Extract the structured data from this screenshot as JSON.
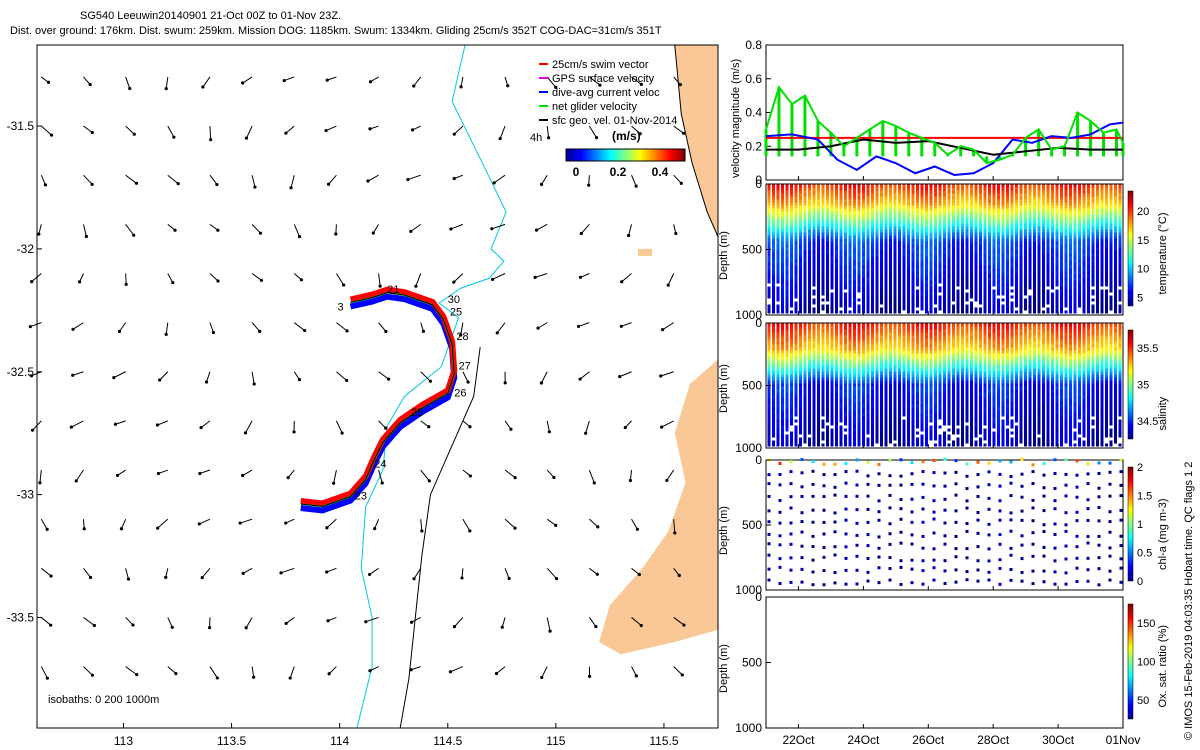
{
  "header": {
    "line1": "SG540 Leeuwin20140901 21-Oct 00Z to 01-Nov 23Z.",
    "line2": "Dist. over ground: 176km. Dist. swum: 259km. Mission DOG: 1185km. Swum: 1334km. Gliding 25cm/s 352T COG-DAC=31cm/s 351T"
  },
  "footer_note": "© IMOS 15-Feb-2019 04:03:35 Hobart time. QC flags 1  2",
  "colors": {
    "land": "#F9C896",
    "isobath_200": "#00C8E6",
    "isobath_1000": "#000000",
    "swim": "#FF0000",
    "gps": "#E000E0",
    "dac": "#0000FF",
    "net": "#00E000",
    "geo": "#000000"
  },
  "map": {
    "lon_ticks": [
      "113",
      "113.5",
      "114",
      "114.5",
      "115",
      "115.5"
    ],
    "lat_ticks": [
      "-31.5",
      "-32",
      "-32.5",
      "-33",
      "-33.5"
    ],
    "lon_range": [
      112.6,
      115.75
    ],
    "lat_range": [
      -33.95,
      -31.17
    ],
    "legend": [
      {
        "label": "25cm/s swim vector",
        "color": "#FF0000"
      },
      {
        "label": "GPS surface velocity",
        "color": "#E000E0"
      },
      {
        "label": "dive-avg current veloc",
        "color": "#0000FF"
      },
      {
        "label": "net glider velocity",
        "color": "#00E000"
      },
      {
        "label": "sfc geo. vel. 01-Nov-2014",
        "color": "#000000"
      }
    ],
    "colorbar_title": "(m/s)",
    "colorbar_ticks": [
      "0",
      "0.2",
      "0.4"
    ],
    "time_label": "4h",
    "isobaths_label": "isobaths: 0   200  1000m",
    "day_labels": [
      {
        "text": "21",
        "lon": 114.22,
        "lat": -32.18
      },
      {
        "text": "30",
        "lon": 114.5,
        "lat": -32.22
      },
      {
        "text": "3",
        "lon": 113.99,
        "lat": -32.25
      },
      {
        "text": "25",
        "lon": 114.51,
        "lat": -32.27
      },
      {
        "text": "28",
        "lon": 114.54,
        "lat": -32.37
      },
      {
        "text": "27",
        "lon": 114.55,
        "lat": -32.49
      },
      {
        "text": "26",
        "lon": 114.53,
        "lat": -32.6
      },
      {
        "text": "25",
        "lon": 114.33,
        "lat": -32.68
      },
      {
        "text": "24",
        "lon": 114.16,
        "lat": -32.89
      },
      {
        "text": "23",
        "lon": 114.07,
        "lat": -33.02
      }
    ]
  },
  "chart_data": [
    {
      "type": "line",
      "ylabel": "velocity magnitude (m/s)",
      "ylim": [
        0,
        0.8
      ],
      "yticks": [
        "0",
        "0.2",
        "0.4",
        "0.6",
        "0.8"
      ],
      "x_dates": [
        "22Oct",
        "24Oct",
        "26Oct",
        "28Oct",
        "30Oct",
        "01Nov"
      ],
      "series": [
        {
          "color": "#FF0000",
          "x": [
            21.0,
            32.0
          ],
          "y": [
            0.25,
            0.25
          ]
        },
        {
          "color": "#0000FF",
          "x": [
            21.0,
            21.8,
            22.6,
            23.2,
            23.8,
            24.4,
            25.0,
            25.6,
            26.2,
            26.8,
            27.4,
            28.0,
            28.6,
            29.2,
            29.8,
            30.4,
            31.0,
            31.6,
            32.0
          ],
          "y": [
            0.26,
            0.27,
            0.24,
            0.12,
            0.06,
            0.14,
            0.1,
            0.04,
            0.08,
            0.03,
            0.04,
            0.1,
            0.24,
            0.22,
            0.26,
            0.25,
            0.27,
            0.33,
            0.34
          ]
        },
        {
          "color": "#000000",
          "x": [
            21.0,
            22.0,
            23.0,
            24.0,
            25.0,
            26.0,
            27.0,
            28.0,
            29.0,
            30.0,
            31.0,
            32.0
          ],
          "y": [
            0.18,
            0.18,
            0.2,
            0.24,
            0.22,
            0.23,
            0.19,
            0.15,
            0.17,
            0.19,
            0.18,
            0.18
          ]
        },
        {
          "color": "#00E000",
          "x": [
            21.0,
            21.4,
            21.8,
            22.2,
            22.6,
            23.0,
            23.4,
            23.8,
            24.2,
            24.6,
            25.0,
            25.4,
            25.8,
            26.2,
            26.6,
            27.0,
            27.4,
            27.8,
            28.2,
            28.6,
            29.0,
            29.4,
            29.8,
            30.2,
            30.6,
            31.0,
            31.4,
            31.8,
            32.0
          ],
          "y": [
            0.3,
            0.55,
            0.45,
            0.5,
            0.35,
            0.28,
            0.2,
            0.25,
            0.3,
            0.35,
            0.32,
            0.28,
            0.25,
            0.22,
            0.15,
            0.2,
            0.18,
            0.1,
            0.12,
            0.15,
            0.25,
            0.3,
            0.18,
            0.2,
            0.4,
            0.35,
            0.28,
            0.3,
            0.22
          ]
        }
      ]
    },
    {
      "type": "heatmap",
      "variable": "temperature",
      "ylabel": "Depth (m)",
      "yticks": [
        "0",
        "500",
        "1000"
      ],
      "clabel": "temperature (°C)",
      "cticks": [
        "5",
        "10",
        "15",
        "20"
      ],
      "x_dates": [
        "22Oct",
        "24Oct",
        "26Oct",
        "28Oct",
        "30Oct",
        "01Nov"
      ]
    },
    {
      "type": "heatmap",
      "variable": "salinity",
      "ylabel": "Depth (m)",
      "yticks": [
        "0",
        "500",
        "1000"
      ],
      "clabel": "salinity",
      "cticks": [
        "34.5",
        "35",
        "35.5"
      ],
      "x_dates": [
        "22Oct",
        "24Oct",
        "26Oct",
        "28Oct",
        "30Oct",
        "01Nov"
      ]
    },
    {
      "type": "scatter",
      "variable": "chl-a",
      "ylabel": "Depth (m)",
      "yticks": [
        "0",
        "500",
        "1000"
      ],
      "clabel": "chl-a (mg m-3)",
      "cticks": [
        "0",
        "0.5",
        "1",
        "1.5",
        "2"
      ],
      "x_dates": [
        "22Oct",
        "24Oct",
        "26Oct",
        "28Oct",
        "30Oct",
        "01Nov"
      ]
    },
    {
      "type": "heatmap",
      "variable": "oxygen",
      "ylabel": "Depth (m)",
      "yticks": [
        "0",
        "500",
        "1000"
      ],
      "clabel": "Ox. sat. ratio (%)",
      "cticks": [
        "50",
        "100",
        "150"
      ],
      "x_dates": [
        "22Oct",
        "24Oct",
        "26Oct",
        "28Oct",
        "30Oct",
        "01Nov"
      ]
    }
  ]
}
